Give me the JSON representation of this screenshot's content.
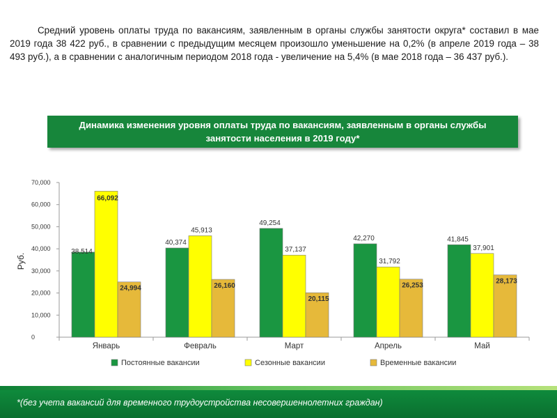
{
  "intro_text": "Средний уровень оплаты труда по вакансиям, заявленным в органы службы занятости округа* составил в мае 2019 года 38 422 руб., в сравнении с предыдущим месяцем произошло уменьшение на 0,2% (в апреле 2019 года – 38 493 руб.), а в сравнении с аналогичным периодом 2018 года - увеличение на 5,4% (в мае 2018 года – 36 437 руб.).",
  "banner_title": "Динамика изменения уровня оплаты труда по вакансиям, заявленным в органы службы занятости населения в 2019 году*",
  "footnote": "*(без учета вакансий для временного трудоустройства несовершеннолетних граждан)",
  "colors": {
    "permanent": "#1a9641",
    "seasonal": "#ffff00",
    "temporary": "#e6b93a",
    "banner": "#17863b",
    "footer": "#0f8a3c"
  },
  "chart_data": {
    "type": "bar",
    "ylabel": "Руб.",
    "ylim": [
      0,
      70000
    ],
    "yticks": [
      0,
      10000,
      20000,
      30000,
      40000,
      50000,
      60000,
      70000
    ],
    "ytick_labels": [
      "0",
      "10,000",
      "20,000",
      "30,000",
      "40,000",
      "50,000",
      "60,000",
      "70,000"
    ],
    "categories": [
      "Январь",
      "Февраль",
      "Март",
      "Апрель",
      "Май"
    ],
    "series": [
      {
        "name": "Постоянные вакансии",
        "color": "#1a9641",
        "values": [
          38514,
          40374,
          49254,
          42270,
          41845
        ],
        "labels": [
          "38,514",
          "40,374",
          "49,254",
          "42,270",
          "41,845"
        ]
      },
      {
        "name": "Сезонные вакансии",
        "color": "#ffff00",
        "values": [
          66092,
          45913,
          37137,
          31792,
          37901
        ],
        "labels": [
          "66,092",
          "45,913",
          "37,137",
          "31,792",
          "37,901"
        ]
      },
      {
        "name": "Временные вакансии",
        "color": "#e6b93a",
        "values": [
          24994,
          26160,
          20115,
          26253,
          28173
        ],
        "labels": [
          "24,994",
          "26,160",
          "20,115",
          "26,253",
          "28,173"
        ]
      }
    ],
    "legend_position": "bottom",
    "grid": false
  }
}
